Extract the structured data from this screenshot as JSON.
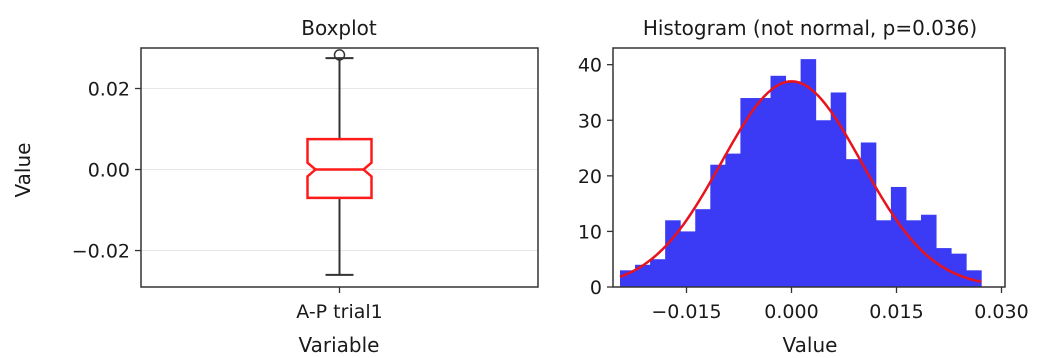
{
  "chart_data": [
    {
      "type": "box",
      "title": "Boxplot",
      "xlabel": "Variable",
      "ylabel": "Value",
      "categories": [
        "A-P trial1"
      ],
      "ylim": [
        -0.029,
        0.03
      ],
      "yticks": [
        0.02,
        0.0,
        -0.02
      ],
      "ytick_labels": [
        "0.02",
        "0.00",
        "−0.02"
      ],
      "notched": true,
      "grid": "horizontal",
      "colors": {
        "box": "#ff1a1a",
        "whisker": "#333333",
        "grid": "#e6e6e6"
      },
      "box": {
        "whisker_low": -0.026,
        "q1": -0.007,
        "median": 0.0,
        "q3": 0.0075,
        "whisker_high": 0.0275,
        "notch_low": -0.0017,
        "notch_high": 0.0017,
        "outliers": [
          0.0283
        ]
      }
    },
    {
      "type": "histogram",
      "title": "Histogram (not normal, p=0.036)",
      "xlabel": "Value",
      "ylabel": "",
      "xlim": [
        -0.0255,
        0.0305
      ],
      "ylim": [
        0,
        43
      ],
      "xticks": [
        -0.015,
        0.0,
        0.015,
        0.03
      ],
      "xtick_labels": [
        "−0.015",
        "0.000",
        "0.015",
        "0.030"
      ],
      "yticks": [
        0,
        10,
        20,
        30,
        40
      ],
      "ytick_labels": [
        "0",
        "10",
        "20",
        "30",
        "40"
      ],
      "bin_start": -0.0245,
      "bin_width": 0.00215,
      "counts": [
        3,
        4,
        5,
        12,
        10,
        14,
        22,
        24,
        34,
        34,
        38,
        37,
        41,
        30,
        35,
        23,
        26,
        12,
        18,
        12,
        13,
        7,
        6,
        3
      ],
      "normal_curve": {
        "mean": 0.0,
        "std": 0.01,
        "peak": 37
      },
      "colors": {
        "bars": "#3b3bf5",
        "curve": "#e8131d"
      }
    }
  ]
}
